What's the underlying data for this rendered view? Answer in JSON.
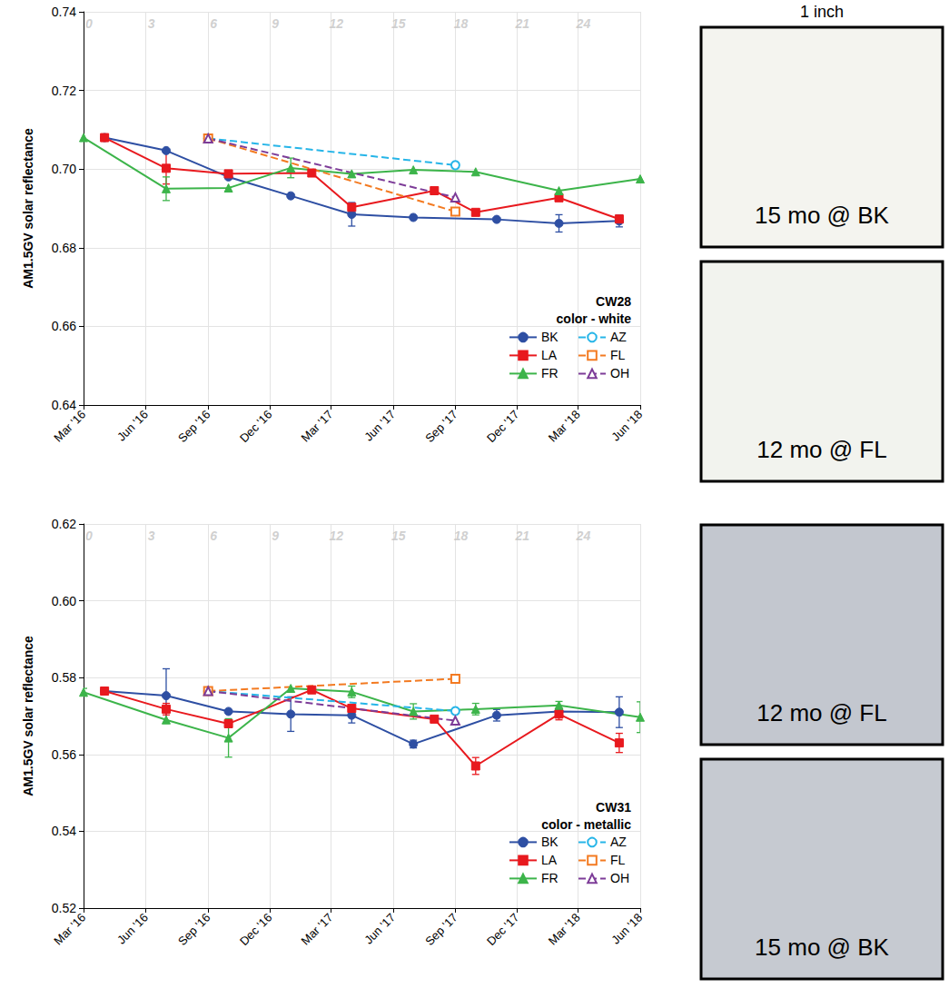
{
  "chart_data": [
    {
      "type": "line",
      "title": "CW28",
      "subtitle": "color - white",
      "y_label": "AM1.5GV solar reflectance",
      "xlim": [
        "2016-03",
        "2018-06"
      ],
      "xticks": [
        {
          "value": "2016-03",
          "label": "Mar '16"
        },
        {
          "value": "2016-06",
          "label": "Jun '16"
        },
        {
          "value": "2016-09",
          "label": "Sep '16"
        },
        {
          "value": "2016-12",
          "label": "Dec '16"
        },
        {
          "value": "2017-03",
          "label": "Mar '17"
        },
        {
          "value": "2017-06",
          "label": "Jun '17"
        },
        {
          "value": "2017-09",
          "label": "Sep '17"
        },
        {
          "value": "2017-12",
          "label": "Dec '17"
        },
        {
          "value": "2018-03",
          "label": "Mar '18"
        },
        {
          "value": "2018-06",
          "label": "Jun '18"
        }
      ],
      "ylim": [
        0.64,
        0.74
      ],
      "yticks": [
        0.64,
        0.66,
        0.68,
        {
          "value": 0.7,
          "label": "0.70"
        },
        0.72,
        0.74
      ],
      "grid": true,
      "legend": "lower right",
      "annotations": [
        {
          "text": "0",
          "x": "2016-03"
        },
        {
          "text": "3",
          "x": "2016-06"
        },
        {
          "text": "6",
          "x": "2016-09"
        },
        {
          "text": "9",
          "x": "2016-12"
        },
        {
          "text": "12",
          "x": "2017-03"
        },
        {
          "text": "15",
          "x": "2017-06"
        },
        {
          "text": "18",
          "x": "2017-09"
        },
        {
          "text": "21",
          "x": "2017-12"
        },
        {
          "text": "24",
          "x": "2018-03"
        }
      ],
      "series": [
        {
          "name": "BK",
          "color": "#2e4fa3",
          "marker": "circle",
          "line_style": "solid",
          "x": [
            "2016-04",
            "2016-07",
            "2016-10",
            "2017-01",
            "2017-04",
            "2017-07",
            "2017-11",
            "2018-02",
            "2018-05"
          ],
          "values": [
            0.708,
            0.7047,
            0.698,
            0.6932,
            0.6885,
            0.6877,
            0.6872,
            0.6862,
            0.6868
          ],
          "errors": [
            null,
            null,
            null,
            null,
            0.003,
            null,
            null,
            0.0022,
            0.0015
          ]
        },
        {
          "name": "LA",
          "color": "#e8191e",
          "marker": "square",
          "line_style": "solid",
          "x": [
            "2016-04",
            "2016-07",
            "2016-10",
            "2017-02",
            "2017-04",
            "2017-08",
            "2017-10",
            "2018-02",
            "2018-05"
          ],
          "values": [
            0.708,
            0.7002,
            0.6988,
            0.699,
            0.6903,
            0.6945,
            0.689,
            0.6927,
            0.6873
          ],
          "errors": [
            null,
            0.004,
            null,
            null,
            null,
            null,
            null,
            null,
            null
          ]
        },
        {
          "name": "FR",
          "color": "#3cb44a",
          "marker": "triangle",
          "line_style": "solid",
          "x": [
            "2016-03",
            "2016-07",
            "2016-10",
            "2017-01",
            "2017-04",
            "2017-07",
            "2017-10",
            "2018-02",
            "2018-06"
          ],
          "values": [
            0.708,
            0.695,
            0.6952,
            0.7003,
            0.6988,
            0.6998,
            0.6993,
            0.6945,
            0.6975
          ],
          "errors": [
            null,
            0.003,
            null,
            0.0025,
            null,
            null,
            null,
            null,
            null
          ]
        },
        {
          "name": "AZ",
          "color": "#26b5e8",
          "marker": "open_circle",
          "line_style": "dashed",
          "x": [
            "2016-09",
            "2017-09"
          ],
          "values": [
            0.7078,
            0.701
          ]
        },
        {
          "name": "FL",
          "color": "#f37a21",
          "marker": "open_square",
          "line_style": "dashed",
          "x": [
            "2016-09",
            "2017-09"
          ],
          "values": [
            0.7078,
            0.6892
          ]
        },
        {
          "name": "OH",
          "color": "#7d3c98",
          "marker": "open_triangle",
          "line_style": "dashed",
          "x": [
            "2016-09",
            "2017-09"
          ],
          "values": [
            0.7078,
            0.6928
          ]
        }
      ]
    },
    {
      "type": "line",
      "title": "CW31",
      "subtitle": "color - metallic",
      "y_label": "AM1.5GV solar reflectance",
      "xlim": [
        "2016-03",
        "2018-06"
      ],
      "xticks": [
        {
          "value": "2016-03",
          "label": "Mar '16"
        },
        {
          "value": "2016-06",
          "label": "Jun '16"
        },
        {
          "value": "2016-09",
          "label": "Sep '16"
        },
        {
          "value": "2016-12",
          "label": "Dec '16"
        },
        {
          "value": "2017-03",
          "label": "Mar '17"
        },
        {
          "value": "2017-06",
          "label": "Jun '17"
        },
        {
          "value": "2017-09",
          "label": "Sep '17"
        },
        {
          "value": "2017-12",
          "label": "Dec '17"
        },
        {
          "value": "2018-03",
          "label": "Mar '18"
        },
        {
          "value": "2018-06",
          "label": "Jun '18"
        }
      ],
      "ylim": [
        0.52,
        0.62
      ],
      "yticks": [
        0.52,
        0.54,
        0.56,
        0.58,
        {
          "value": 0.6,
          "label": "0.60"
        },
        0.62
      ],
      "grid": true,
      "legend": "lower right",
      "annotations": [
        {
          "text": "0",
          "x": "2016-03"
        },
        {
          "text": "3",
          "x": "2016-06"
        },
        {
          "text": "6",
          "x": "2016-09"
        },
        {
          "text": "9",
          "x": "2016-12"
        },
        {
          "text": "12",
          "x": "2017-03"
        },
        {
          "text": "15",
          "x": "2017-06"
        },
        {
          "text": "18",
          "x": "2017-09"
        },
        {
          "text": "21",
          "x": "2017-12"
        },
        {
          "text": "24",
          "x": "2018-03"
        }
      ],
      "series": [
        {
          "name": "BK",
          "color": "#2e4fa3",
          "marker": "circle",
          "line_style": "solid",
          "x": [
            "2016-04",
            "2016-07",
            "2016-10",
            "2017-01",
            "2017-04",
            "2017-07",
            "2017-11",
            "2018-02",
            "2018-05"
          ],
          "values": [
            0.5765,
            0.5753,
            0.5712,
            0.5705,
            0.5702,
            0.5627,
            0.5702,
            0.5712,
            0.571
          ],
          "errors": [
            null,
            0.007,
            null,
            0.0045,
            0.002,
            0.001,
            0.0015,
            null,
            0.004
          ]
        },
        {
          "name": "LA",
          "color": "#e8191e",
          "marker": "square",
          "line_style": "solid",
          "x": [
            "2016-04",
            "2016-07",
            "2016-10",
            "2017-02",
            "2017-04",
            "2017-08",
            "2017-10",
            "2018-02",
            "2018-05"
          ],
          "values": [
            0.5765,
            0.5718,
            0.568,
            0.5768,
            0.572,
            0.5692,
            0.557,
            0.5705,
            0.563
          ],
          "errors": [
            null,
            0.0015,
            null,
            null,
            null,
            null,
            0.0022,
            0.0015,
            0.0025
          ]
        },
        {
          "name": "FR",
          "color": "#3cb44a",
          "marker": "triangle",
          "line_style": "solid",
          "x": [
            "2016-03",
            "2016-07",
            "2016-10",
            "2017-01",
            "2017-04",
            "2017-07",
            "2017-10",
            "2018-02",
            "2018-06"
          ],
          "values": [
            0.5762,
            0.569,
            0.5643,
            0.5772,
            0.5763,
            0.5712,
            0.5718,
            0.5728,
            0.5697
          ],
          "errors": [
            0.001,
            null,
            0.005,
            null,
            0.0015,
            0.002,
            0.0015,
            0.001,
            0.004
          ]
        },
        {
          "name": "AZ",
          "color": "#26b5e8",
          "marker": "open_circle",
          "line_style": "dashed",
          "x": [
            "2016-09",
            "2017-09"
          ],
          "values": [
            0.5765,
            0.5713
          ]
        },
        {
          "name": "FL",
          "color": "#f37a21",
          "marker": "open_square",
          "line_style": "dashed",
          "x": [
            "2016-09",
            "2017-09"
          ],
          "values": [
            0.5765,
            0.5797
          ]
        },
        {
          "name": "OH",
          "color": "#7d3c98",
          "marker": "open_triangle",
          "line_style": "dashed",
          "x": [
            "2016-09",
            "2017-09"
          ],
          "values": [
            0.5765,
            0.5688
          ]
        }
      ]
    }
  ],
  "photos": {
    "scale_label": "1 inch",
    "panels": [
      {
        "label": "15 mo @ BK",
        "color": "#f4f4ef"
      },
      {
        "label": "12 mo @ FL",
        "color": "#f2f3ee"
      },
      {
        "label": "12 mo @ FL",
        "color": "#c3c7cf"
      },
      {
        "label": "15 mo @ BK",
        "color": "#c6cad1"
      }
    ]
  }
}
